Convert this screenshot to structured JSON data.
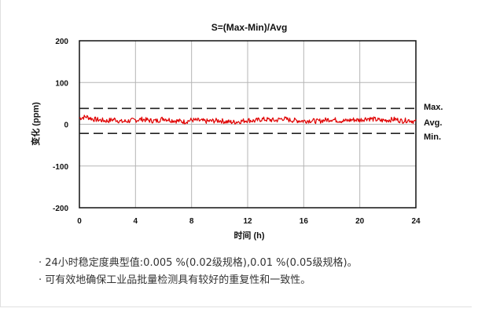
{
  "chart_data": {
    "type": "line",
    "title": "S=(Max-Min)/Avg",
    "xlabel": "时间 (h)",
    "ylabel": "变化 (ppm)",
    "xlim": [
      0,
      24
    ],
    "ylim": [
      -200,
      200
    ],
    "x_ticks": [
      0,
      4,
      8,
      12,
      16,
      20,
      24
    ],
    "y_ticks": [
      200,
      100,
      0,
      -100,
      -200
    ],
    "grid": true,
    "series": [
      {
        "color": "#e00000",
        "style": "noisy",
        "x": [
          0,
          0.5,
          1,
          1.5,
          2,
          2.5,
          3,
          3.5,
          4,
          4.5,
          5,
          5.5,
          6,
          6.5,
          7,
          7.5,
          8,
          8.5,
          9,
          9.5,
          10,
          10.5,
          11,
          11.5,
          12,
          12.5,
          13,
          13.5,
          14,
          14.5,
          15,
          15.5,
          16,
          16.5,
          17,
          17.5,
          18,
          18.5,
          19,
          19.5,
          20,
          20.5,
          21,
          21.5,
          22,
          22.5,
          23,
          23.5,
          24
        ],
        "values": [
          15,
          18,
          12,
          10,
          8,
          12,
          6,
          8,
          10,
          12,
          9,
          8,
          14,
          10,
          8,
          6,
          10,
          9,
          7,
          8,
          9,
          6,
          5,
          7,
          10,
          8,
          12,
          11,
          9,
          14,
          10,
          9,
          8,
          9,
          7,
          10,
          12,
          9,
          8,
          11,
          10,
          14,
          12,
          9,
          10,
          12,
          8,
          10,
          6
        ]
      }
    ],
    "reference_lines": [
      {
        "label": "Max.",
        "value": 38,
        "style": "dashed",
        "color": "#222222"
      },
      {
        "label": "Avg.",
        "value": 0,
        "style": "none",
        "color": "#222222"
      },
      {
        "label": "Min.",
        "value": -22,
        "style": "dashed",
        "color": "#222222"
      }
    ]
  },
  "notes": [
    "· 24小时稳定度典型值:0.005 %(0.02级规格),0.01 %(0.05级规格)。",
    "· 可有效地确保工业品批量检测具有较好的重复性和一致性。"
  ]
}
